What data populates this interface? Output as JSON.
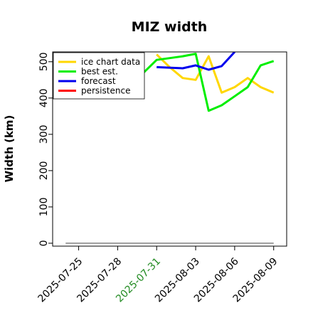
{
  "chart_data": {
    "type": "line",
    "title": "MIZ width",
    "xlabel": "",
    "ylabel": "Width (km)",
    "x_ticks": [
      "2025-07-25",
      "2025-07-28",
      "2025-07-31",
      "2025-08-03",
      "2025-08-06",
      "2025-08-09"
    ],
    "x_tick_colors": [
      "#000000",
      "#000000",
      "#228b22",
      "#000000",
      "#000000",
      "#000000"
    ],
    "xlim": [
      "2025-07-23",
      "2025-08-10"
    ],
    "y_ticks": [
      0,
      100,
      200,
      300,
      400,
      500
    ],
    "ylim": [
      -8,
      527
    ],
    "grid": false,
    "legend_position": "top-left",
    "baseline": {
      "x": [
        "2025-07-24",
        "2025-08-09"
      ],
      "y": [
        0,
        0
      ],
      "color": "#808080"
    },
    "series": [
      {
        "name": "ice chart data",
        "color": "#ffd700",
        "x": [
          "2025-07-31",
          "2025-08-01",
          "2025-08-02",
          "2025-08-03",
          "2025-08-04",
          "2025-08-05",
          "2025-08-06",
          "2025-08-07",
          "2025-08-08",
          "2025-08-09"
        ],
        "y": [
          520,
          485,
          455,
          450,
          515,
          415,
          430,
          455,
          430,
          415
        ]
      },
      {
        "name": "best est.",
        "color": "#00ee00",
        "x": [
          "2025-07-30",
          "2025-07-31",
          "2025-08-01",
          "2025-08-02",
          "2025-08-03",
          "2025-08-04",
          "2025-08-05",
          "2025-08-06",
          "2025-08-07",
          "2025-08-08",
          "2025-08-09"
        ],
        "y": [
          470,
          505,
          510,
          515,
          522,
          365,
          380,
          405,
          430,
          490,
          502
        ]
      },
      {
        "name": "forecast",
        "color": "#0000ee",
        "x": [
          "2025-07-31",
          "2025-08-02",
          "2025-08-03",
          "2025-08-04",
          "2025-08-05",
          "2025-08-06"
        ],
        "y": [
          485,
          482,
          490,
          478,
          488,
          527
        ]
      },
      {
        "name": "persistence",
        "color": "#ff0000",
        "x": [],
        "y": []
      }
    ]
  }
}
